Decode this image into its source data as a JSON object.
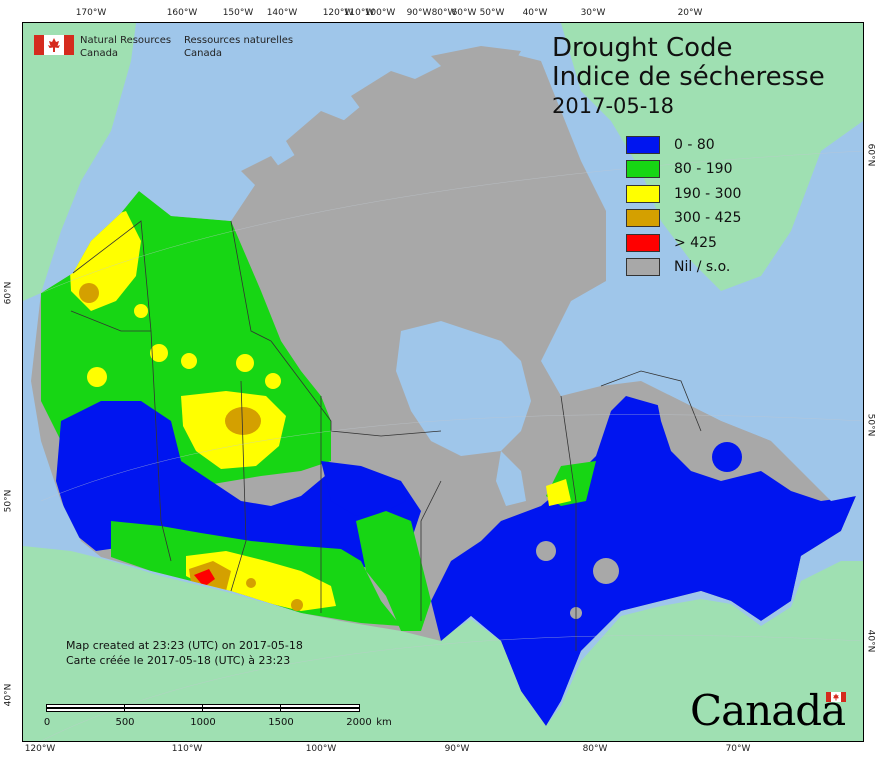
{
  "header": {
    "org_en_line1": "Natural Resources",
    "org_en_line2": "Canada",
    "org_fr_line1": "Ressources naturelles",
    "org_fr_line2": "Canada"
  },
  "title": {
    "line1": "Drought Code",
    "line2": "Indice de sécheresse",
    "date": "2017-05-18"
  },
  "legend": [
    {
      "label": "0 - 80",
      "color": "#0015f0"
    },
    {
      "label": "80 - 190",
      "color": "#17d614"
    },
    {
      "label": "190 - 300",
      "color": "#ffff00"
    },
    {
      "label": "300 - 425",
      "color": "#d4a000"
    },
    {
      "label": "> 425",
      "color": "#ff0000"
    },
    {
      "label": "Nil / s.o.",
      "color": "#a8a8a8"
    }
  ],
  "credit": {
    "en": "Map created at 23:23 (UTC) on 2017-05-18",
    "fr": "Carte créée le 2017-05-18 (UTC) à 23:23"
  },
  "scale": {
    "labels": [
      "0",
      "500",
      "1000",
      "1500",
      "2000"
    ],
    "unit": "km"
  },
  "wordmark": "Canada",
  "graticule": {
    "top": [
      "170°W",
      "160°W",
      "150°W",
      "140°W",
      "120°W",
      "110°W",
      "100°W",
      "90°W",
      "80°W",
      "60°W",
      "50°W",
      "40°W",
      "30°W",
      "20°W"
    ],
    "bottom": [
      "120°W",
      "110°W",
      "100°W",
      "90°W",
      "80°W",
      "70°W"
    ],
    "left": [
      "60°N",
      "50°N",
      "40°N"
    ],
    "right": [
      "60°N",
      "50°N",
      "40°N"
    ]
  },
  "colors": {
    "ocean": "#9fc6ea",
    "foreign_land": "#9fe0b2",
    "no_data": "#a8a8a8",
    "flag_red": "#d52b1e"
  }
}
